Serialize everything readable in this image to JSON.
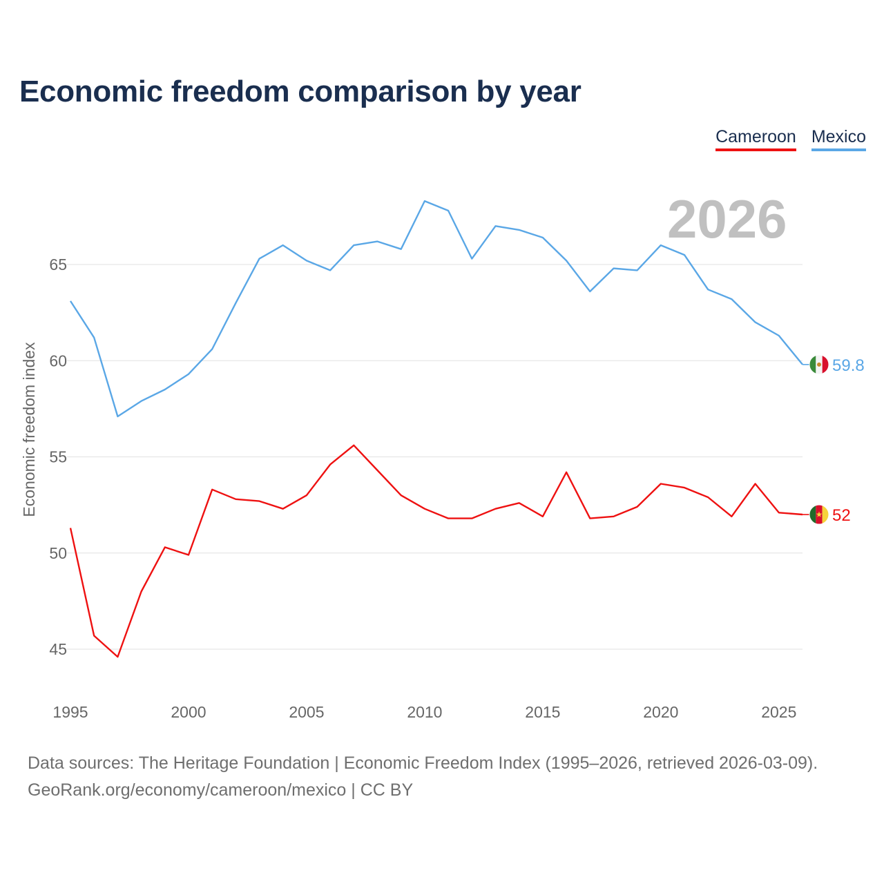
{
  "title": "Economic freedom comparison by year",
  "year_overlay": "2026",
  "legend": [
    {
      "name": "Cameroon",
      "color": "#ee1111"
    },
    {
      "name": "Mexico",
      "color": "#5aa7e6"
    }
  ],
  "source": {
    "line1": "Data sources: The Heritage Foundation | Economic Freedom Index (1995–2026, retrieved 2026-03-09).",
    "line2": "GeoRank.org/economy/cameroon/mexico | CC BY"
  },
  "chart_data": {
    "type": "line",
    "title": "Economic freedom comparison by year",
    "xlabel": "",
    "ylabel": "Economic freedom index",
    "xlim": [
      1995,
      2026
    ],
    "ylim": [
      43,
      68.5
    ],
    "x_ticks": [
      1995,
      2000,
      2005,
      2010,
      2015,
      2020,
      2025
    ],
    "y_ticks": [
      45,
      50,
      55,
      60,
      65
    ],
    "grid": true,
    "x": [
      1995,
      1996,
      1997,
      1998,
      1999,
      2000,
      2001,
      2002,
      2003,
      2004,
      2005,
      2006,
      2007,
      2008,
      2009,
      2010,
      2011,
      2012,
      2013,
      2014,
      2015,
      2016,
      2017,
      2018,
      2019,
      2020,
      2021,
      2022,
      2023,
      2024,
      2025,
      2026
    ],
    "series": [
      {
        "name": "Mexico",
        "color": "#5aa7e6",
        "end_label": "59.8",
        "values": [
          63.1,
          61.2,
          57.1,
          57.9,
          58.5,
          59.3,
          60.6,
          63.0,
          65.3,
          66.0,
          65.2,
          64.7,
          66.0,
          66.2,
          65.8,
          68.3,
          67.8,
          65.3,
          67.0,
          66.8,
          66.4,
          65.2,
          63.6,
          64.8,
          64.7,
          66.0,
          65.5,
          63.7,
          63.2,
          62.0,
          61.3,
          59.8
        ]
      },
      {
        "name": "Cameroon",
        "color": "#ee1111",
        "end_label": "52",
        "values": [
          51.3,
          45.7,
          44.6,
          48.0,
          50.3,
          49.9,
          53.3,
          52.8,
          52.7,
          52.3,
          53.0,
          54.6,
          55.6,
          54.3,
          53.0,
          52.3,
          51.8,
          51.8,
          52.3,
          52.6,
          51.9,
          54.2,
          51.8,
          51.9,
          52.4,
          53.6,
          53.4,
          52.9,
          51.9,
          53.6,
          52.1,
          52.0
        ]
      }
    ]
  }
}
